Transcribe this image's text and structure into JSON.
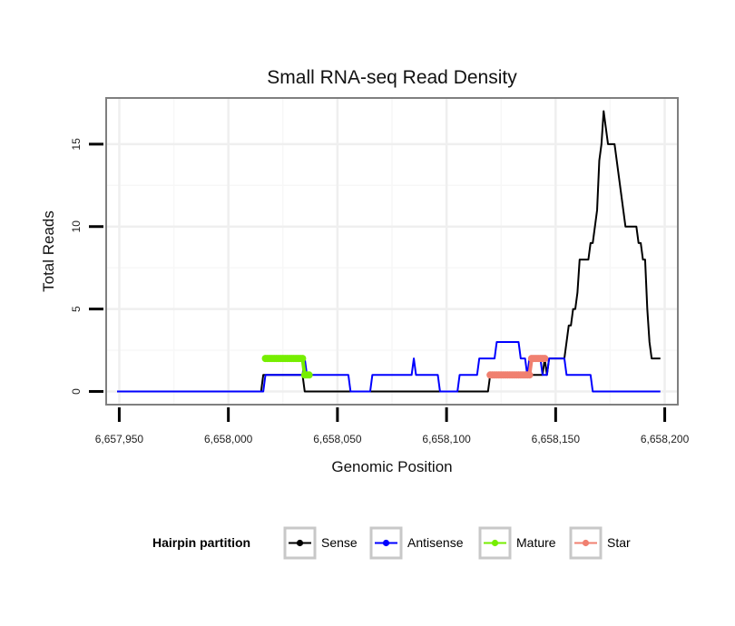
{
  "chart_data": {
    "type": "line",
    "title": "Small RNA-seq Read Density",
    "xlabel": "Genomic Position",
    "ylabel": "Total Reads",
    "xlim": [
      6657944,
      6658206
    ],
    "ylim": [
      -0.8,
      17.8
    ],
    "x_ticks": [
      6657950,
      6658000,
      6658050,
      6658100,
      6658150,
      6658200
    ],
    "x_tick_labels": [
      "6,657,950",
      "6,658,000",
      "6,658,050",
      "6,658,100",
      "6,658,150",
      "6,658,200"
    ],
    "y_ticks": [
      0,
      5,
      10,
      15
    ],
    "y_tick_labels": [
      "0",
      "5",
      "10",
      "15"
    ],
    "grid": true,
    "legend_position": "bottom",
    "legend_title": "Hairpin partition",
    "series": [
      {
        "name": "Sense",
        "color": "#000000",
        "style": "line",
        "x": [
          6657949,
          6658015,
          6658016,
          6658034,
          6658035,
          6658036,
          6658037,
          6658044,
          6658045,
          6658119,
          6658120,
          6658121,
          6658144,
          6658145,
          6658146,
          6658147,
          6658154,
          6658155,
          6658156,
          6658157,
          6658158,
          6658159,
          6658160,
          6658161,
          6658162,
          6658163,
          6658164,
          6658165,
          6658166,
          6658167,
          6658168,
          6658169,
          6658170,
          6658171,
          6658172,
          6658173,
          6658174,
          6658175,
          6658176,
          6658177,
          6658178,
          6658179,
          6658180,
          6658181,
          6658182,
          6658183,
          6658184,
          6658185,
          6658186,
          6658187,
          6658188,
          6658189,
          6658190,
          6658191,
          6658192,
          6658193,
          6658194,
          6658195,
          6658196,
          6658197,
          6658198
        ],
        "y": [
          0,
          0,
          1,
          1,
          0,
          0,
          0,
          0,
          0,
          0,
          1,
          1,
          1,
          2,
          1,
          2,
          2,
          3,
          4,
          4,
          5,
          5,
          6,
          8,
          8,
          8,
          8,
          8,
          9,
          9,
          10,
          11,
          14,
          15,
          17,
          16,
          15,
          15,
          15,
          15,
          14,
          13,
          12,
          11,
          10,
          10,
          10,
          10,
          10,
          10,
          9,
          9,
          8,
          8,
          5,
          3,
          2,
          2,
          2,
          2,
          2
        ]
      },
      {
        "name": "Antisense",
        "color": "#0000ff",
        "style": "line",
        "x": [
          6657949,
          6658016,
          6658017,
          6658018,
          6658034,
          6658035,
          6658036,
          6658055,
          6658056,
          6658057,
          6658065,
          6658066,
          6658084,
          6658085,
          6658086,
          6658087,
          6658096,
          6658097,
          6658105,
          6658106,
          6658107,
          6658114,
          6658115,
          6658122,
          6658123,
          6658124,
          6658133,
          6658134,
          6658135,
          6658136,
          6658137,
          6658138,
          6658139,
          6658140,
          6658141,
          6658142,
          6658143,
          6658144,
          6658145,
          6658146,
          6658147,
          6658148,
          6658149,
          6658150,
          6658151,
          6658152,
          6658153,
          6658154,
          6658155,
          6658156,
          6658157,
          6658166,
          6658167,
          6658198
        ],
        "y": [
          0,
          0,
          1,
          1,
          1,
          2,
          1,
          1,
          0,
          0,
          0,
          1,
          1,
          2,
          1,
          1,
          1,
          0,
          0,
          1,
          1,
          1,
          2,
          2,
          3,
          3,
          3,
          2,
          2,
          2,
          1,
          2,
          2,
          2,
          2,
          2,
          2,
          1,
          1,
          1,
          2,
          2,
          2,
          2,
          2,
          2,
          2,
          2,
          1,
          1,
          1,
          1,
          0,
          0
        ]
      },
      {
        "name": "Mature",
        "color": "#76ee00",
        "style": "points",
        "x": [
          6658017,
          6658018,
          6658019,
          6658020,
          6658021,
          6658022,
          6658023,
          6658024,
          6658025,
          6658026,
          6658027,
          6658028,
          6658029,
          6658030,
          6658031,
          6658032,
          6658033,
          6658034,
          6658035,
          6658036,
          6658037
        ],
        "y": [
          2,
          2,
          2,
          2,
          2,
          2,
          2,
          2,
          2,
          2,
          2,
          2,
          2,
          2,
          2,
          2,
          2,
          2,
          1,
          1,
          1
        ]
      },
      {
        "name": "Star",
        "color": "#f08070",
        "style": "points",
        "x": [
          6658120,
          6658121,
          6658122,
          6658123,
          6658124,
          6658125,
          6658126,
          6658127,
          6658128,
          6658129,
          6658130,
          6658131,
          6658132,
          6658133,
          6658134,
          6658135,
          6658136,
          6658137,
          6658138,
          6658139,
          6658140,
          6658141,
          6658142,
          6658143,
          6658144,
          6658145
        ],
        "y": [
          1,
          1,
          1,
          1,
          1,
          1,
          1,
          1,
          1,
          1,
          1,
          1,
          1,
          1,
          1,
          1,
          1,
          1,
          1,
          2,
          2,
          2,
          2,
          2,
          2,
          2
        ]
      }
    ]
  }
}
